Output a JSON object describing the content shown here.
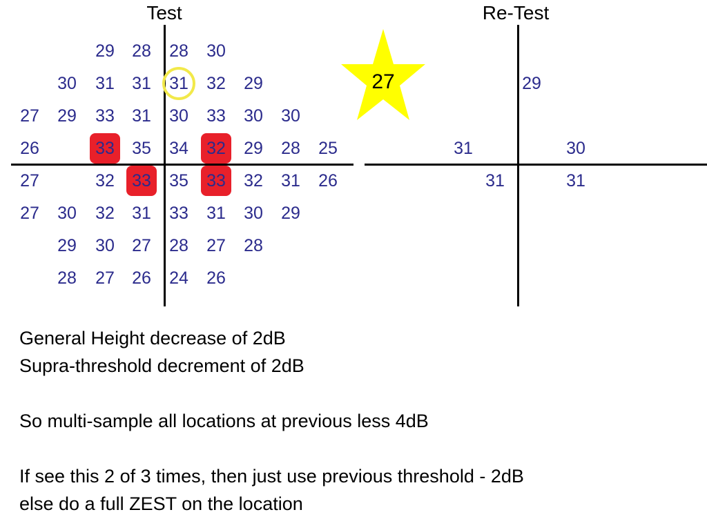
{
  "colors": {
    "number": "#2b2b8c",
    "axis": "#000000",
    "highlight": "#e8202a",
    "ring": "#f2e94a",
    "star": "#ffff00"
  },
  "test": {
    "title": "Test",
    "rows": [
      [
        "",
        "",
        "29",
        "28",
        "28",
        "30",
        "",
        "",
        ""
      ],
      [
        "",
        "30",
        "31",
        "31",
        "31",
        "32",
        "29",
        "",
        ""
      ],
      [
        "27",
        "29",
        "33",
        "31",
        "30",
        "33",
        "30",
        "30",
        ""
      ],
      [
        "26",
        "",
        "33",
        "35",
        "34",
        "32",
        "29",
        "28",
        "25"
      ],
      [
        "27",
        "",
        "32",
        "33",
        "35",
        "33",
        "32",
        "31",
        "26"
      ],
      [
        "27",
        "30",
        "32",
        "31",
        "33",
        "31",
        "30",
        "29",
        ""
      ],
      [
        "",
        "29",
        "30",
        "27",
        "28",
        "27",
        "28",
        "",
        ""
      ],
      [
        "",
        "28",
        "27",
        "26",
        "24",
        "26",
        "",
        "",
        ""
      ]
    ],
    "highlighted": [
      [
        3,
        2
      ],
      [
        3,
        5
      ],
      [
        4,
        3
      ],
      [
        4,
        5
      ]
    ],
    "circled": [
      [
        1,
        4
      ]
    ]
  },
  "retest": {
    "title": "Re-Test",
    "values": {
      "top_right": "29",
      "mid_left": "31",
      "mid_right": "30",
      "low_left": "31",
      "low_right": "31"
    },
    "star_value": "27"
  },
  "notes": [
    "General Height decrease of 2dB",
    "Supra-threshold decrement of 2dB",
    "",
    "So multi-sample all locations at previous less 4dB",
    "",
    "If see this 2 of 3 times, then just use previous threshold - 2dB",
    "else do a full ZEST on the location"
  ]
}
